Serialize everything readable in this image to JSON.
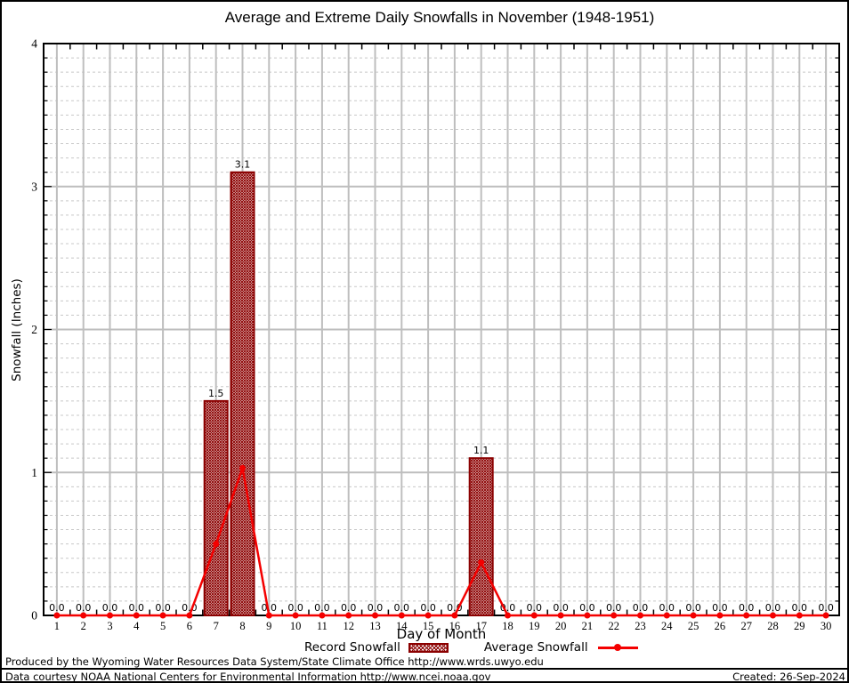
{
  "chart_data": {
    "type": "bar",
    "title": "Average and Extreme Daily Snowfalls in November (1948-1951)",
    "xlabel": "Day of Month",
    "ylabel": "Snowfall (Inches)",
    "ylim": [
      0,
      4
    ],
    "y_major_ticks": [
      0,
      1,
      2,
      3,
      4
    ],
    "y_minor_step": 0.1,
    "x_range": [
      1,
      30
    ],
    "grid": {
      "major_on": true,
      "minor_dashed": true,
      "major_color": "#bebebe",
      "minor_color": "#c8c8c8"
    },
    "legend_position": "bottom-center",
    "categories": [
      1,
      2,
      3,
      4,
      5,
      6,
      7,
      8,
      9,
      10,
      11,
      12,
      13,
      14,
      15,
      16,
      17,
      18,
      19,
      20,
      21,
      22,
      23,
      24,
      25,
      26,
      27,
      28,
      29,
      30
    ],
    "series": [
      {
        "name": "Record Snowfall",
        "type": "bar",
        "color": "#8b0000",
        "fill": "crosshatch",
        "value_label_decimals": 1,
        "values": [
          0,
          0,
          0,
          0,
          0,
          0,
          1.5,
          3.1,
          0,
          0,
          0,
          0,
          0,
          0,
          0,
          0,
          1.1,
          0,
          0,
          0,
          0,
          0,
          0,
          0,
          0,
          0,
          0,
          0,
          0,
          0
        ]
      },
      {
        "name": "Average Snowfall",
        "type": "line",
        "color": "#f40000",
        "marker": "filled-circle",
        "values": [
          0,
          0,
          0,
          0,
          0,
          0,
          0.5,
          1.03,
          0,
          0,
          0,
          0,
          0,
          0,
          0,
          0,
          0.37,
          0,
          0,
          0,
          0,
          0,
          0,
          0,
          0,
          0,
          0,
          0,
          0,
          0
        ]
      }
    ]
  },
  "footer": {
    "produced_by": "Produced by the Wyoming Water Resources Data System/State Climate Office http://www.wrds.uwyo.edu",
    "data_courtesy": "Data courtesy NOAA National Centers for Environmental Information http://www.ncei.noaa.gov",
    "created": "Created: 26-Sep-2024"
  }
}
